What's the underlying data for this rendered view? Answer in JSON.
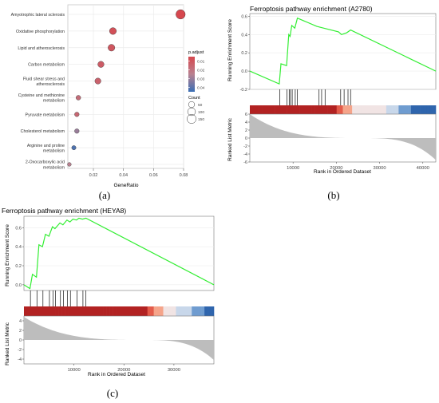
{
  "panels": {
    "a": "(a)",
    "b": "(b)",
    "c": "(c)"
  },
  "chart_data": [
    {
      "type": "scatter",
      "panel": "a",
      "xlabel": "GeneRatio",
      "xticks": [
        "0.02",
        "0.04",
        "0.06",
        "0.08"
      ],
      "xlim": [
        0.003,
        0.08
      ],
      "categories": [
        "Amyotrophic lateral sclerosis",
        "Oxidative phosphorylation",
        "Lipid and atherosclerosis",
        "Carbon metabolism",
        "Fluid shear stress and\natherosclerosis",
        "Cysteine and methionine\nmetabolism",
        "Pyruvate metabolism",
        "Cholesterol metabolism",
        "Arginine and proline\nmetabolism",
        "2-Oxocarboxylic acid\nmetabolism"
      ],
      "gene_ratio": [
        0.078,
        0.033,
        0.032,
        0.025,
        0.023,
        0.01,
        0.009,
        0.009,
        0.007,
        0.004
      ],
      "count": [
        160,
        70,
        68,
        52,
        48,
        22,
        19,
        19,
        15,
        9
      ],
      "p_adjust": [
        0.005,
        0.008,
        0.01,
        0.012,
        0.014,
        0.018,
        0.016,
        0.03,
        0.042,
        0.025
      ],
      "legend": {
        "color_title": "p.adjust",
        "color_ticks": [
          "0.01",
          "0.02",
          "0.03",
          "0.04"
        ],
        "color_low": "#d6474e",
        "color_high": "#3a6fb5",
        "size_title": "Count",
        "size_ticks": [
          "50",
          "100",
          "150"
        ]
      }
    },
    {
      "type": "line",
      "panel": "b",
      "title": "Ferroptosis pathway enrichment (A2780)",
      "ylabel": "Running Enrichment Score",
      "xlabel": "Rank in Ordered Dataset",
      "ylabel2": "Ranked List Metric",
      "xlim": [
        0,
        43000
      ],
      "ylim": [
        -0.2,
        0.63
      ],
      "yticks": [
        "0.6",
        "0.4",
        "0.2",
        "0.0",
        "-0.2"
      ],
      "ytick_values": [
        0.6,
        0.4,
        0.2,
        0.0,
        -0.2
      ],
      "xticks": [
        "10000",
        "20000",
        "30000",
        "40000"
      ],
      "xtick_values": [
        10000,
        20000,
        30000,
        40000
      ],
      "metric_ylim": [
        -6,
        6
      ],
      "metric_ticks": [
        "6",
        "4",
        "2",
        "0",
        "-2",
        "-4",
        "-6"
      ],
      "metric_tick_values": [
        6,
        4,
        2,
        0,
        -2,
        -4,
        -6
      ],
      "metric_start": 6,
      "metric_end": -5.5,
      "line_color": "#33ee33",
      "es_x": [
        0,
        6800,
        7200,
        8500,
        9000,
        9300,
        9700,
        10400,
        11000,
        15500,
        16300,
        20500,
        21200,
        22400,
        23300,
        43000
      ],
      "es_y": [
        0.0,
        -0.14,
        0.08,
        0.06,
        0.4,
        0.38,
        0.5,
        0.47,
        0.58,
        0.49,
        0.48,
        0.43,
        0.4,
        0.42,
        0.45,
        0.0
      ],
      "hit_positions": [
        6900,
        8600,
        9100,
        9400,
        9800,
        10500,
        11000,
        16000,
        16600,
        17400,
        21000,
        21800,
        22700,
        23300
      ]
    },
    {
      "type": "line",
      "panel": "c",
      "title": "Ferroptosis pathway enrichment (HEYA8)",
      "ylabel": "Running Enrichment Score",
      "xlabel": "Rank in Ordered Dataset",
      "ylabel2": "Ranked List Metric",
      "xlim": [
        0,
        38000
      ],
      "ylim": [
        -0.06,
        0.72
      ],
      "yticks": [
        "0.6",
        "0.4",
        "0.2",
        "0.0"
      ],
      "ytick_values": [
        0.6,
        0.4,
        0.2,
        0.0
      ],
      "xticks": [
        "10000",
        "20000",
        "30000"
      ],
      "xtick_values": [
        10000,
        20000,
        30000
      ],
      "metric_ylim": [
        -5,
        5
      ],
      "metric_ticks": [
        "4",
        "2",
        "0",
        "-2",
        "-4"
      ],
      "metric_tick_values": [
        4,
        2,
        0,
        -2,
        -4
      ],
      "metric_start": 4.8,
      "metric_end": -4.2,
      "line_color": "#33ee33",
      "es_x": [
        0,
        1200,
        1700,
        2500,
        3000,
        3700,
        4300,
        5000,
        5700,
        6200,
        7200,
        7800,
        8600,
        9200,
        9800,
        10500,
        11000,
        11700,
        12400,
        38000
      ],
      "es_y": [
        0.0,
        -0.04,
        0.11,
        0.08,
        0.42,
        0.4,
        0.53,
        0.51,
        0.61,
        0.59,
        0.65,
        0.63,
        0.68,
        0.66,
        0.69,
        0.68,
        0.7,
        0.69,
        0.7,
        0.0
      ],
      "hit_positions": [
        1300,
        2600,
        3800,
        5100,
        5800,
        6300,
        7300,
        7900,
        8700,
        9300,
        10600,
        11800,
        12400
      ]
    }
  ]
}
